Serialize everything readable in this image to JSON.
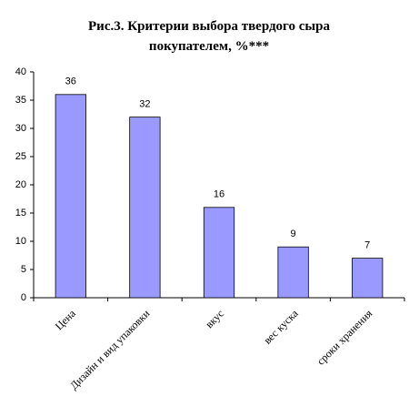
{
  "chart_data": {
    "type": "bar",
    "title": "Рис.3. Критерии выбора твердого сыра покупателем, %***",
    "categories": [
      "Цена",
      "Дизайн и вид упаковки",
      "вкус",
      "вес куска",
      "сроки хранения"
    ],
    "values": [
      36,
      32,
      16,
      9,
      7
    ],
    "color": "#9999ff",
    "ylim": [
      0,
      40
    ],
    "yticks": [
      0,
      5,
      10,
      15,
      20,
      25,
      30,
      35,
      40
    ],
    "grid": false,
    "data_labels": true
  }
}
